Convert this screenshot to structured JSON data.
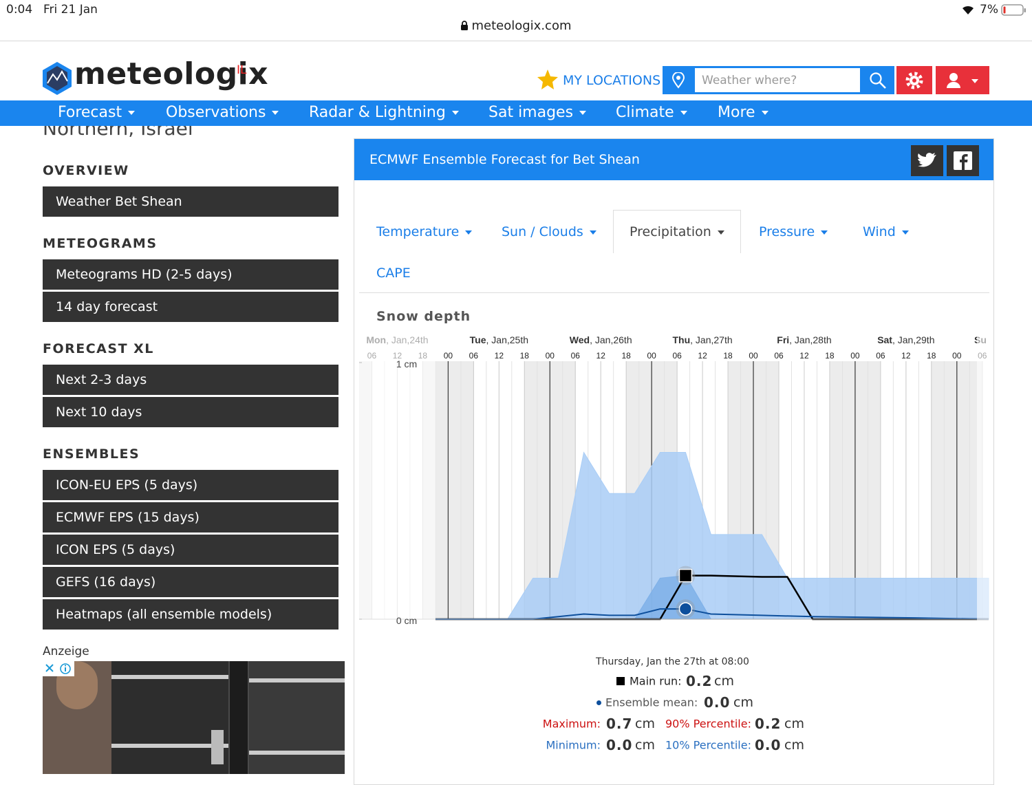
{
  "status_bar": {
    "time": "0:04",
    "date": "Fri 21 Jan",
    "battery": "7%",
    "url": "meteologix.com"
  },
  "header": {
    "logo": "meteologix",
    "logo_suffix": "IL",
    "my_locations": "MY LOCATIONS",
    "search_placeholder": "Weather where?"
  },
  "nav": [
    "Forecast",
    "Observations",
    "Radar & Lightning",
    "Sat images",
    "Climate",
    "More"
  ],
  "sidebar": {
    "region": "Northern, Israel",
    "sections": [
      {
        "title": "OVERVIEW",
        "items": [
          "Weather Bet Shean"
        ]
      },
      {
        "title": "METEOGRAMS",
        "items": [
          "Meteograms HD (2-5 days)",
          "14 day forecast"
        ]
      },
      {
        "title": "FORECAST XL",
        "items": [
          "Next 2-3 days",
          "Next 10 days"
        ]
      },
      {
        "title": "ENSEMBLES",
        "items": [
          "ICON-EU EPS (5 days)",
          "ECMWF EPS (15 days)",
          "ICON EPS (5 days)",
          "GEFS (16 days)",
          "Heatmaps (all ensemble models)"
        ]
      }
    ],
    "ad_label": "Anzeige"
  },
  "panel": {
    "title": "ECMWF Ensemble Forecast for Bet Shean",
    "tabs": [
      "Temperature",
      "Sun / Clouds",
      "Precipitation",
      "Pressure",
      "Wind",
      "CAPE"
    ],
    "active_tab": 2
  },
  "chart": {
    "type": "area",
    "title": "Snow depth",
    "days": [
      {
        "day": "Mon",
        "date": ", Jan,24th"
      },
      {
        "day": "Tue",
        "date": ", Jan,25th"
      },
      {
        "day": "Wed",
        "date": ", Jan,26th"
      },
      {
        "day": "Thu",
        "date": ", Jan,27th"
      },
      {
        "day": "Fri",
        "date": ", Jan,28th"
      },
      {
        "day": "Sat",
        "date": ", Jan,29th"
      },
      {
        "day": "Su"
      }
    ],
    "xlim": [
      -21,
      127.5
    ],
    "xticks": [
      {
        "value": -18,
        "label": "06"
      },
      {
        "value": -12,
        "label": "12"
      },
      {
        "value": -6,
        "label": "18"
      },
      {
        "value": 0,
        "label": "00"
      },
      {
        "value": 6,
        "label": "06"
      },
      {
        "value": 12,
        "label": "12"
      },
      {
        "value": 18,
        "label": "18"
      },
      {
        "value": 24,
        "label": "00"
      },
      {
        "value": 30,
        "label": "06"
      },
      {
        "value": 36,
        "label": "12"
      },
      {
        "value": 42,
        "label": "18"
      },
      {
        "value": 48,
        "label": "00"
      },
      {
        "value": 54,
        "label": "06"
      },
      {
        "value": 60,
        "label": "12"
      },
      {
        "value": 66,
        "label": "18"
      },
      {
        "value": 72,
        "label": "00"
      },
      {
        "value": 78,
        "label": "06"
      },
      {
        "value": 84,
        "label": "12"
      },
      {
        "value": 90,
        "label": "18"
      },
      {
        "value": 96,
        "label": "00"
      },
      {
        "value": 102,
        "label": "06"
      },
      {
        "value": 108,
        "label": "12"
      },
      {
        "value": 114,
        "label": "18"
      },
      {
        "value": 120,
        "label": "00"
      },
      {
        "value": 126,
        "label": "06"
      }
    ],
    "ylim": [
      0,
      1
    ],
    "yticks": [
      {
        "value": 0,
        "label": "0 cm"
      },
      {
        "value": 1,
        "label": "1 cm"
      }
    ],
    "highlight_x": 56,
    "series": [
      {
        "name": "Main run:",
        "style": "line",
        "color": "#000000",
        "x": [
          -3,
          50,
          56,
          62,
          74,
          80,
          86,
          127.5
        ],
        "values": [
          0,
          0,
          0.17,
          0.17,
          0.165,
          0.165,
          0,
          0
        ]
      },
      {
        "name": "Ensemble mean:",
        "style": "line",
        "color": "#0d4f9c",
        "x": [
          -3,
          20,
          32,
          38,
          44,
          50,
          56,
          62,
          74,
          86,
          110,
          127.5
        ],
        "values": [
          0,
          0,
          0.02,
          0.015,
          0.015,
          0.04,
          0.04,
          0.02,
          0.015,
          0.01,
          0.005,
          0
        ]
      },
      {
        "name": "Maximum:",
        "style": "area",
        "color": "#a9cdf6",
        "x": [
          14,
          20,
          26,
          32,
          38,
          44,
          50,
          56,
          62,
          74,
          80,
          127.5
        ],
        "values": [
          0,
          0.16,
          0.16,
          0.65,
          0.49,
          0.49,
          0.65,
          0.65,
          0.33,
          0.33,
          0.16,
          0.16
        ]
      },
      {
        "name": "90% Percentile:",
        "style": "area",
        "color": "#7eb0e8",
        "x": [
          44,
          50,
          56,
          62
        ],
        "values": [
          0,
          0.16,
          0.17,
          0
        ]
      },
      {
        "name": "Minimum:",
        "style": "area",
        "color": "#7eb0e8",
        "x": [
          -3,
          127.5
        ],
        "values": [
          0,
          0
        ]
      },
      {
        "name": "10% Percentile:",
        "style": "area",
        "color": "#7eb0e8",
        "x": [
          -3,
          127.5
        ],
        "values": [
          0,
          0
        ]
      }
    ],
    "tooltip": {
      "time": "Thursday, Jan the 27th at 08:00",
      "unit": "cm",
      "values": [
        "0.2",
        "0.0",
        "0.7",
        "0.2",
        "0.0",
        "0.0"
      ]
    }
  }
}
